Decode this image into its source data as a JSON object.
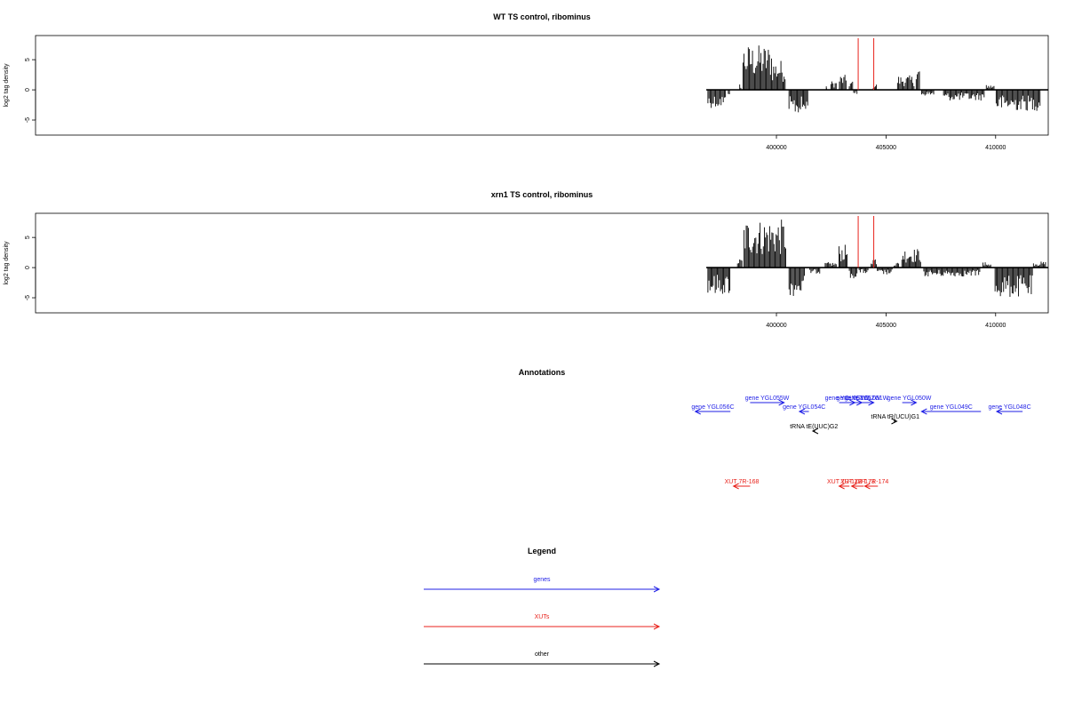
{
  "chart_data": [
    {
      "type": "bar",
      "title": "WT TS control, ribominus",
      "xlabel": "",
      "ylabel": "log2 tag density",
      "xlim": [
        366200,
        412400
      ],
      "ylim": [
        -7.5,
        9
      ],
      "x_ticks": [
        400000,
        405000,
        410000
      ],
      "x_tick_labels": [
        "400000",
        "405000",
        "410000"
      ],
      "y_ticks": [
        -5,
        0,
        5
      ],
      "y_tick_labels": [
        "-5",
        "0",
        "5"
      ],
      "bar_color": "#000000",
      "marker_color": "#e8221b",
      "markers_x": [
        403730,
        404440
      ],
      "baseline": [
        396800,
        412400
      ],
      "segments": [
        {
          "x0": 396850,
          "x1": 397700,
          "v": -3.0
        },
        {
          "x0": 397780,
          "x1": 397880,
          "v": -0.8
        },
        {
          "x0": 398300,
          "x1": 398400,
          "v": 1.0
        },
        {
          "x0": 398450,
          "x1": 399800,
          "v": 7.5
        },
        {
          "x0": 399800,
          "x1": 400420,
          "v": 5.0
        },
        {
          "x0": 400550,
          "x1": 401450,
          "v": -4.2
        },
        {
          "x0": 402270,
          "x1": 402290,
          "v": 0.6
        },
        {
          "x0": 402460,
          "x1": 402750,
          "v": 1.5
        },
        {
          "x0": 402850,
          "x1": 403200,
          "v": 2.5
        },
        {
          "x0": 403300,
          "x1": 403500,
          "v": 1.5
        },
        {
          "x0": 403500,
          "x1": 403700,
          "v": -0.7
        },
        {
          "x0": 404400,
          "x1": 404580,
          "v": 1.0
        },
        {
          "x0": 405500,
          "x1": 406300,
          "v": 2.4
        },
        {
          "x0": 406350,
          "x1": 406550,
          "v": 4.0
        },
        {
          "x0": 406600,
          "x1": 407200,
          "v": -1.0
        },
        {
          "x0": 407600,
          "x1": 409500,
          "v": -1.8
        },
        {
          "x0": 409550,
          "x1": 409950,
          "v": 0.8
        },
        {
          "x0": 410000,
          "x1": 412050,
          "v": -3.5
        }
      ]
    },
    {
      "type": "bar",
      "title": "xrn1 TS control, ribominus",
      "xlabel": "",
      "ylabel": "log2 tag density",
      "xlim": [
        366200,
        412400
      ],
      "ylim": [
        -7.5,
        9
      ],
      "x_ticks": [
        400000,
        405000,
        410000
      ],
      "x_tick_labels": [
        "400000",
        "405000",
        "410000"
      ],
      "y_ticks": [
        -5,
        0,
        5
      ],
      "y_tick_labels": [
        "-5",
        "0",
        "5"
      ],
      "bar_color": "#000000",
      "marker_color": "#e8221b",
      "markers_x": [
        403730,
        404440
      ],
      "baseline": [
        396800,
        412400
      ],
      "segments": [
        {
          "x0": 396850,
          "x1": 397900,
          "v": -4.5
        },
        {
          "x0": 398200,
          "x1": 398450,
          "v": 1.5
        },
        {
          "x0": 398500,
          "x1": 400450,
          "v": 8.0
        },
        {
          "x0": 400550,
          "x1": 401300,
          "v": -4.8
        },
        {
          "x0": 401500,
          "x1": 402000,
          "v": -1.0
        },
        {
          "x0": 402200,
          "x1": 402750,
          "v": 0.9
        },
        {
          "x0": 402830,
          "x1": 403250,
          "v": 3.8
        },
        {
          "x0": 403300,
          "x1": 403700,
          "v": -1.8
        },
        {
          "x0": 403750,
          "x1": 404200,
          "v": -1.0
        },
        {
          "x0": 404300,
          "x1": 404580,
          "v": 1.8
        },
        {
          "x0": 404580,
          "x1": 405300,
          "v": -1.2
        },
        {
          "x0": 405350,
          "x1": 405600,
          "v": 0.9
        },
        {
          "x0": 405700,
          "x1": 406600,
          "v": 3.2
        },
        {
          "x0": 406700,
          "x1": 409300,
          "v": -1.5
        },
        {
          "x0": 409400,
          "x1": 409800,
          "v": 0.9
        },
        {
          "x0": 409950,
          "x1": 411700,
          "v": -5.0
        },
        {
          "x0": 411700,
          "x1": 412300,
          "v": 1.0
        }
      ]
    },
    {
      "type": "other",
      "title": "Annotations",
      "features": [
        {
          "label": "gene YGL056C",
          "color": "#1f1fe6",
          "strand": "-",
          "x0": 396300,
          "x1": 397900,
          "y": 0
        },
        {
          "label": "gene YGL055W",
          "color": "#1f1fe6",
          "strand": "+",
          "x0": 398800,
          "x1": 400350,
          "y": 1
        },
        {
          "label": "gene YGL054C",
          "color": "#1f1fe6",
          "strand": "-",
          "x0": 401050,
          "x1": 401480,
          "y": 0
        },
        {
          "label": "gene YGL053W",
          "color": "#1f1fe6",
          "strand": "+",
          "x0": 402860,
          "x1": 403580,
          "y": 1
        },
        {
          "label": "gene YGL052W",
          "color": "#1f1fe6",
          "strand": "+",
          "x0": 403580,
          "x1": 403900,
          "y": 1
        },
        {
          "label": "gene YGL051W",
          "color": "#1f1fe6",
          "strand": "+",
          "x0": 403780,
          "x1": 404440,
          "y": 1
        },
        {
          "label": "gene YGL050W",
          "color": "#1f1fe6",
          "strand": "+",
          "x0": 405740,
          "x1": 406380,
          "y": 1
        },
        {
          "label": "gene YGL049C",
          "color": "#1f1fe6",
          "strand": "-",
          "x0": 406620,
          "x1": 409330,
          "y": 0
        },
        {
          "label": "gene YGL048C",
          "color": "#1f1fe6",
          "strand": "-",
          "x0": 410050,
          "x1": 411230,
          "y": 0
        },
        {
          "label": "tRNA tE(UUC)G2",
          "color": "#000000",
          "strand": "-",
          "x0": 401660,
          "x1": 401760,
          "y": -1
        },
        {
          "label": "tRNA tR(UCU)G1",
          "color": "#000000",
          "strand": "+",
          "x0": 405350,
          "x1": 405490,
          "y": -0.6
        },
        {
          "label": "XUT 7R-168",
          "color": "#e8221b",
          "strand": "-",
          "x0": 398040,
          "x1": 398800,
          "y": -5
        },
        {
          "label": "XUT 7R-172",
          "color": "#e8221b",
          "strand": "-",
          "x0": 402860,
          "x1": 403330,
          "y": -5
        },
        {
          "label": "XUT 7R-173",
          "color": "#e8221b",
          "strand": "-",
          "x0": 403430,
          "x1": 403980,
          "y": -5
        },
        {
          "label": "XUT 7R-174",
          "color": "#e8221b",
          "strand": "-",
          "x0": 404030,
          "x1": 404630,
          "y": -5
        }
      ]
    },
    {
      "type": "other",
      "title": "Legend",
      "entries": [
        {
          "label": "genes",
          "color": "#1f1fe6"
        },
        {
          "label": "XUTs",
          "color": "#e8221b"
        },
        {
          "label": "other",
          "color": "#000000"
        }
      ]
    }
  ]
}
